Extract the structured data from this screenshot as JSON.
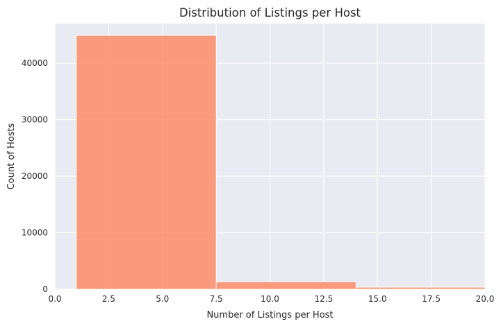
{
  "chart_data": {
    "type": "bar",
    "title": "Distribution of Listings per Host",
    "xlabel": "Number of Listings per Host",
    "ylabel": "Count of Hosts",
    "xlim": [
      0,
      20
    ],
    "ylim": [
      0,
      47000
    ],
    "xticks": [
      0,
      2.5,
      5,
      7.5,
      10,
      12.5,
      15,
      17.5,
      20
    ],
    "xtick_labels": [
      "0.0",
      "2.5",
      "5.0",
      "7.5",
      "10.0",
      "12.5",
      "15.0",
      "17.5",
      "20.0"
    ],
    "yticks": [
      0,
      10000,
      20000,
      30000,
      40000
    ],
    "ytick_labels": [
      "0",
      "10000",
      "20000",
      "30000",
      "40000"
    ],
    "bins": [
      {
        "start": 1.0,
        "end": 7.5,
        "value": 44900
      },
      {
        "start": 7.5,
        "end": 14.0,
        "value": 1300
      },
      {
        "start": 14.0,
        "end": 20.5,
        "value": 350
      }
    ],
    "bar_color": "#fa8c66",
    "background_color": "#eaeaf2",
    "grid": true
  }
}
